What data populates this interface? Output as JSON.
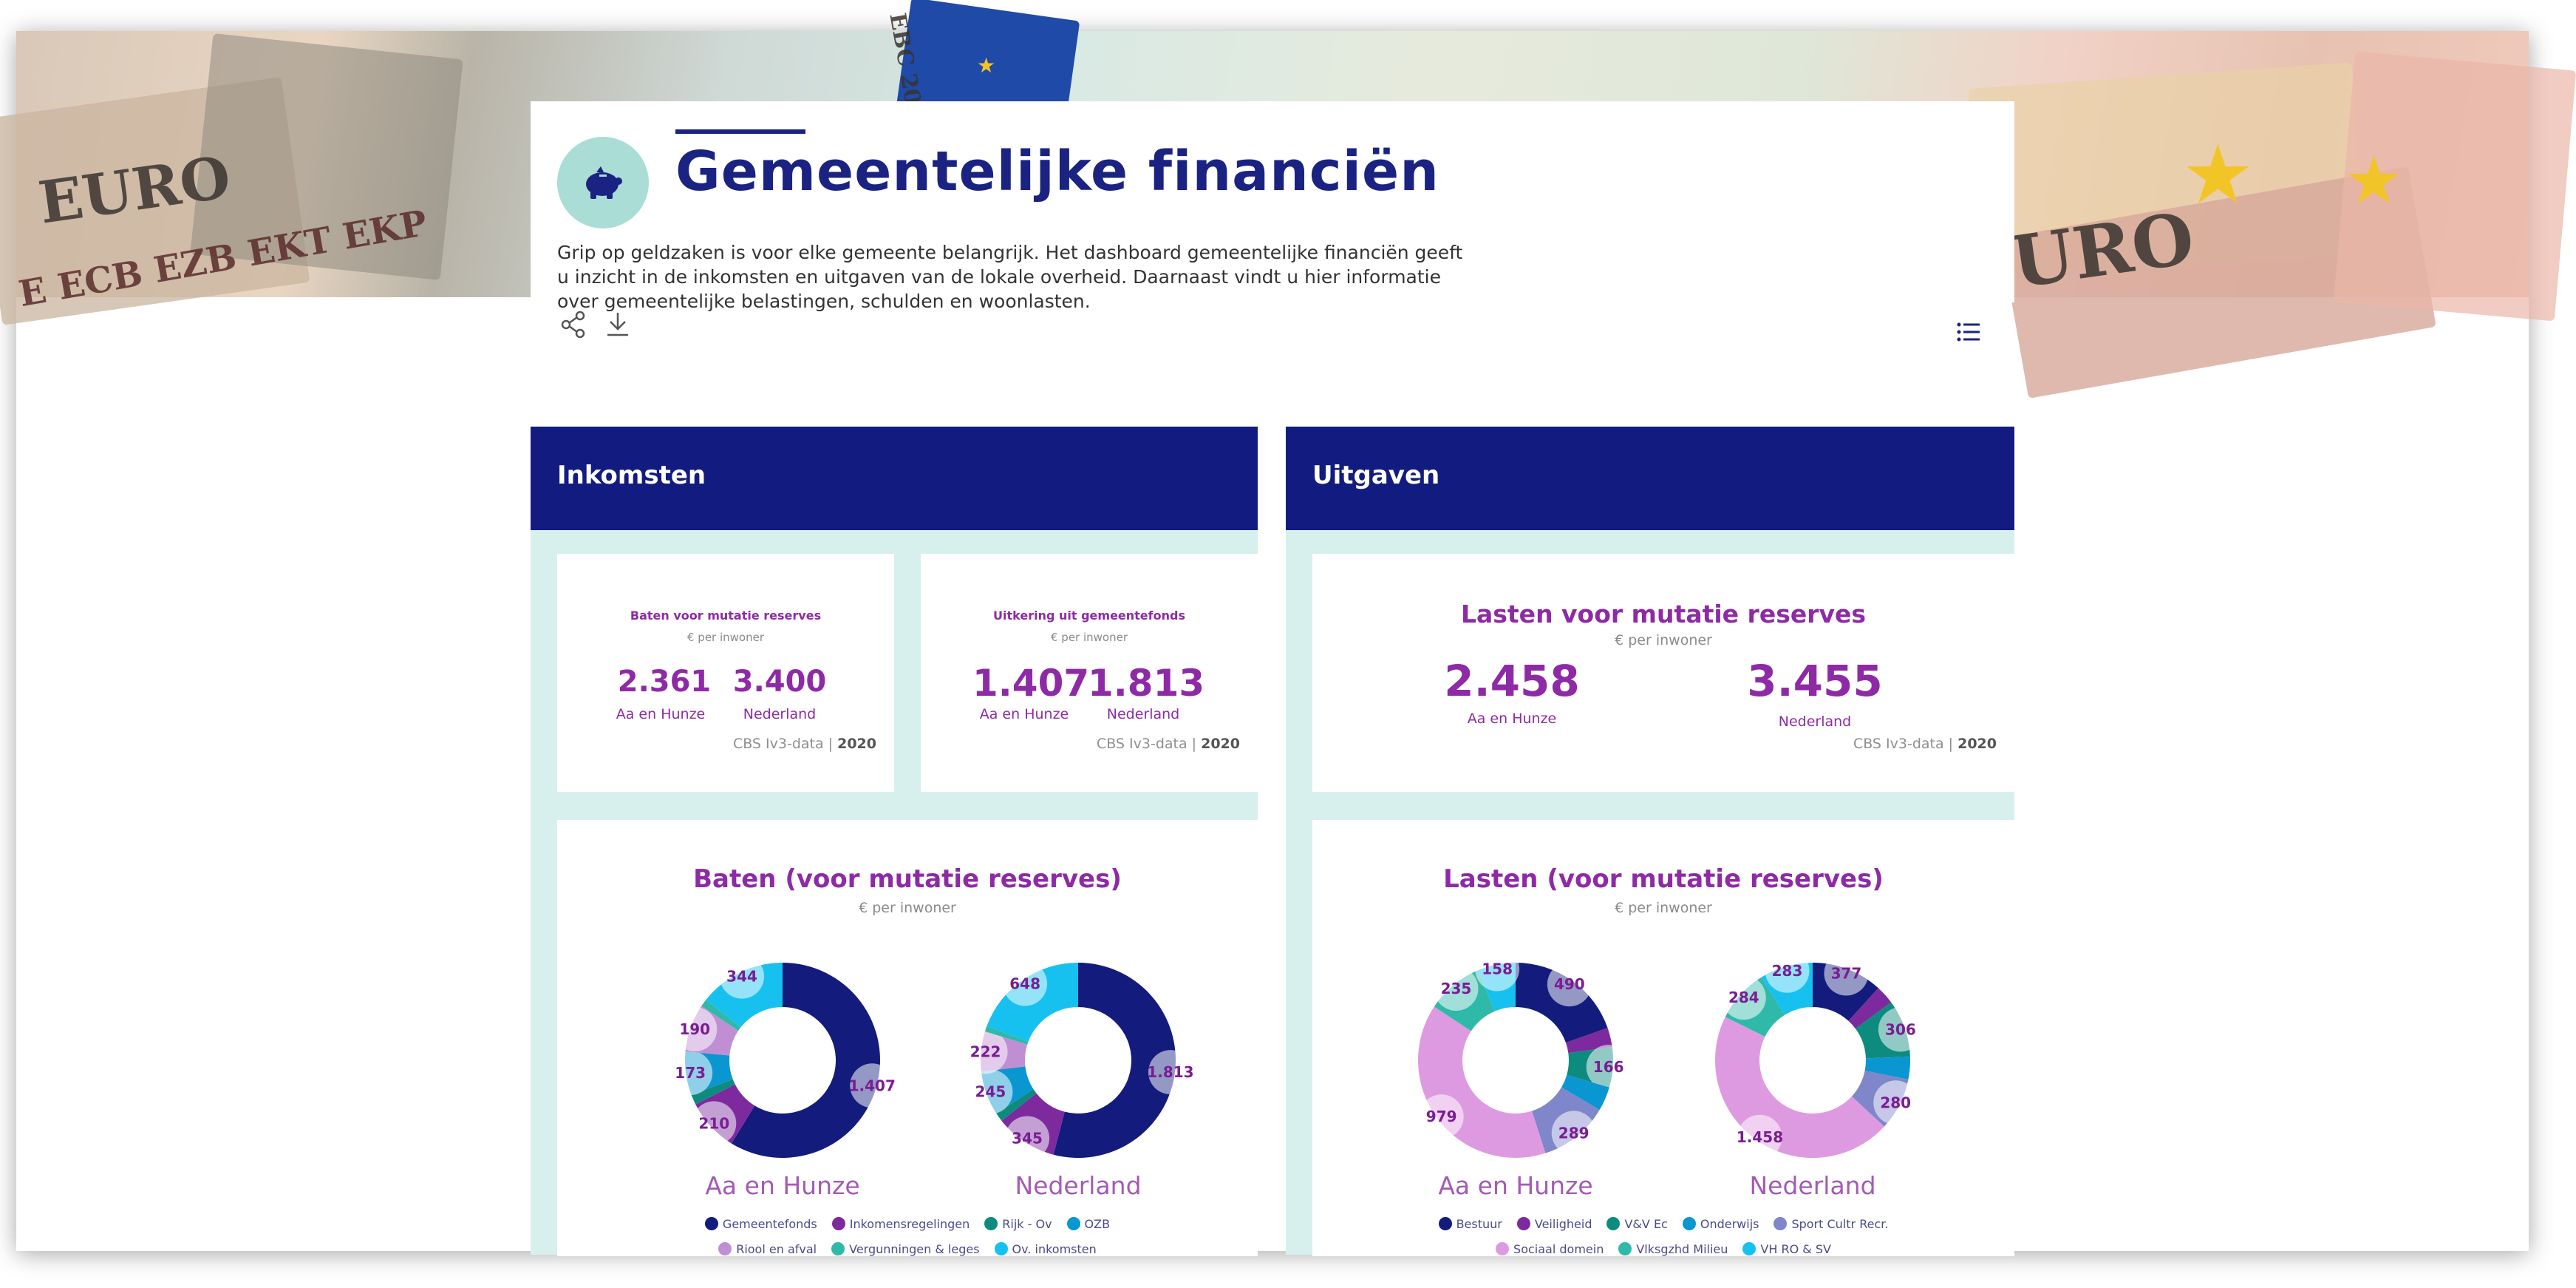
{
  "banner": {
    "text1": "EURO",
    "text2": "E ECB EZB EKT EKP",
    "text3": "URO",
    "text4": "EBC 20"
  },
  "header": {
    "title": "Gemeentelijke financiën",
    "intro": "Grip op geldzaken is voor elke gemeente belangrijk. Het dashboard gemeentelijke financiën geeft u inzicht in de inkomsten en uitgaven van de lokale overheid. Daarnaast vindt u hier informatie over gemeentelijke belastingen, schulden en woonlasten.",
    "avatar_icon": "piggy-bank-icon"
  },
  "toolbar": {
    "share_icon": "share-icon",
    "download_icon": "download-icon",
    "list_icon": "list-icon"
  },
  "sections": {
    "left": "Inkomsten",
    "right": "Uitgaven"
  },
  "kpis": [
    {
      "title": "Baten voor mutatie reserves",
      "sub": "€ per inwoner",
      "v1": "2.361",
      "l1": "Aa en Hunze",
      "v2": "3.400",
      "l2": "Nederland",
      "src": "CBS Iv3-data",
      "year": "2020"
    },
    {
      "title": "Uitkering uit gemeentefonds",
      "sub": "€ per inwoner",
      "v1": "1.407",
      "l1": "Aa en Hunze",
      "v2": "1.813",
      "l2": "Nederland",
      "src": "CBS Iv3-data",
      "year": "2020"
    },
    {
      "title": "Lasten voor mutatie reserves",
      "sub": "€ per inwoner",
      "v1": "2.458",
      "l1": "Aa en Hunze",
      "v2": "3.455",
      "l2": "Nederland",
      "src": "CBS Iv3-data",
      "year": "2020"
    }
  ],
  "colors": {
    "navy": "#131b7c",
    "purple": "#7c2a9e",
    "teal": "#0d8b7f",
    "blue": "#0a96d0",
    "lilac": "#c08fd3",
    "aqua": "#2fb9a8",
    "cyan": "#16c1f0",
    "bestuur": "#131b7c",
    "veiligheid": "#7c2a9e",
    "vvec": "#0d8b7f",
    "onderwijs": "#0a96d0",
    "sport": "#7f86c9",
    "sociaal": "#de9ae0",
    "vksgzhd": "#2fb9a8",
    "vhro": "#16c1f0"
  },
  "chart_data": [
    {
      "type": "donut",
      "title": "Baten (voor mutatie reserves)",
      "subtitle": "€ per inwoner",
      "legend": [
        "Gemeentefonds",
        "Inkomensregelingen",
        "Rijk - Ov",
        "OZB",
        "Riool en afval",
        "Vergunningen & leges",
        "Ov. inkomsten"
      ],
      "series": [
        {
          "name": "Aa en Hunze",
          "labels": [
            "1.407",
            "210",
            "",
            "173",
            "190",
            "",
            "344"
          ],
          "values": [
            1407,
            210,
            40,
            173,
            190,
            30,
            344
          ]
        },
        {
          "name": "Nederland",
          "labels": [
            "1.813",
            "345",
            "",
            "245",
            "222",
            "",
            "648"
          ],
          "values": [
            1813,
            345,
            50,
            245,
            222,
            30,
            648
          ]
        }
      ]
    },
    {
      "type": "donut",
      "title": "Lasten (voor mutatie reserves)",
      "subtitle": "€ per inwoner",
      "legend": [
        "Bestuur",
        "Veiligheid",
        "V&V Ec",
        "Onderwijs",
        "Sport Cultr Recr.",
        "Sociaal domein",
        "Vlksgzhd Milieu",
        "VH RO & SV"
      ],
      "series": [
        {
          "name": "Aa en Hunze",
          "labels": [
            "490",
            "",
            "166",
            "",
            "289",
            "979",
            "235",
            "158"
          ],
          "values": [
            490,
            80,
            166,
            100,
            289,
            979,
            235,
            158
          ]
        },
        {
          "name": "Nederland",
          "labels": [
            "377",
            "",
            "306",
            "",
            "280",
            "1.458",
            "284",
            "283"
          ],
          "values": [
            377,
            100,
            306,
            120,
            280,
            1458,
            284,
            283
          ]
        }
      ]
    }
  ]
}
